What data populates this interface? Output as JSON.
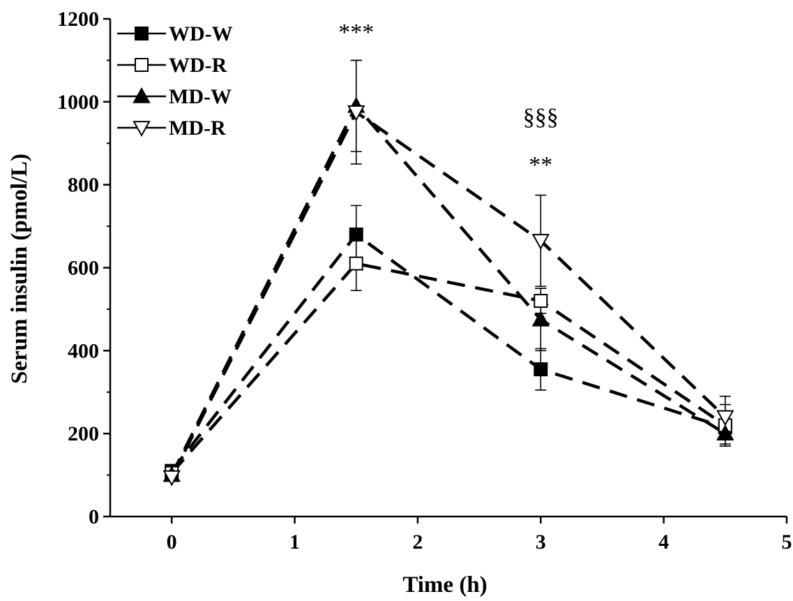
{
  "chart_data": {
    "type": "line",
    "title": "",
    "xlabel": "Time (h)",
    "ylabel": "Serum insulin (pmol/L)",
    "xlim": [
      -0.5,
      5
    ],
    "ylim": [
      0,
      1200
    ],
    "xticks": [
      0,
      1,
      2,
      3,
      4,
      5
    ],
    "yticks": [
      0,
      200,
      400,
      600,
      800,
      1000,
      1200
    ],
    "x": [
      0,
      1.5,
      3,
      4.5
    ],
    "grid": false,
    "legend_position": "top-left",
    "series": [
      {
        "name": "WD-W",
        "marker": "square-filled",
        "values": [
          110,
          680,
          355,
          215
        ],
        "errors": [
          0,
          70,
          50,
          40
        ]
      },
      {
        "name": "WD-R",
        "marker": "square-open",
        "values": [
          105,
          610,
          520,
          220
        ],
        "errors": [
          0,
          65,
          30,
          50
        ]
      },
      {
        "name": "MD-W",
        "marker": "triangle-up-filled",
        "values": [
          100,
          990,
          475,
          200
        ],
        "errors": [
          0,
          110,
          75,
          30
        ]
      },
      {
        "name": "MD-R",
        "marker": "triangle-down-open",
        "values": [
          95,
          975,
          665,
          240
        ],
        "errors": [
          0,
          125,
          110,
          50
        ]
      }
    ],
    "annotations": [
      {
        "text": "***",
        "x": 1.5,
        "y": 1170
      },
      {
        "text": "§§§",
        "x": 3,
        "y": 965
      },
      {
        "text": "**",
        "x": 3,
        "y": 850
      }
    ]
  }
}
